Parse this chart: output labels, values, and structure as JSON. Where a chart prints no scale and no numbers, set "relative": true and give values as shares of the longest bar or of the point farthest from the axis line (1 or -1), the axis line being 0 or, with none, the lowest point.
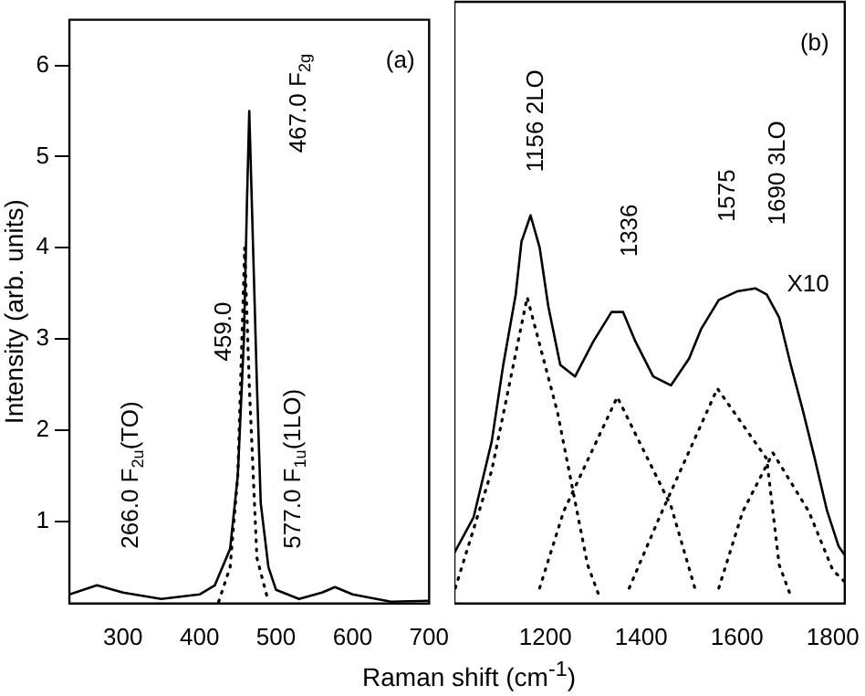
{
  "chart_data": [
    {
      "type": "line",
      "ylabel": "Intensity (arb. units)",
      "xlim": [
        230,
        700
      ],
      "xticks": [
        300,
        400,
        500,
        600,
        700
      ],
      "ylim": [
        0.1,
        6.5
      ],
      "yticks": [
        1,
        2,
        3,
        4,
        5,
        6
      ],
      "grid": false,
      "marker": "none",
      "series": [
        {
          "color": "#000000",
          "line_style": "solid",
          "x": [
            230,
            266,
            300,
            350,
            400,
            420,
            440,
            450,
            458,
            462,
            465,
            470,
            475,
            480,
            490,
            500,
            530,
            560,
            577,
            600,
            650,
            700
          ],
          "values": [
            0.2,
            0.3,
            0.22,
            0.15,
            0.2,
            0.3,
            0.7,
            1.5,
            3.0,
            4.5,
            5.5,
            4.0,
            2.5,
            1.2,
            0.5,
            0.25,
            0.15,
            0.22,
            0.28,
            0.2,
            0.12,
            0.13
          ]
        },
        {
          "color": "#000000",
          "line_style": "dotted",
          "x": [
            425,
            440,
            450,
            459,
            465,
            475,
            490
          ],
          "values": [
            0.12,
            0.5,
            1.5,
            4.0,
            2.5,
            0.6,
            0.12
          ]
        }
      ],
      "annotations": [
        "(a)",
        "266.0 F$_{2u}$(TO)",
        "459.0",
        "467.0 F$_{2g}$",
        "577.0 F$_{1u}$(1LO)"
      ]
    },
    {
      "type": "line",
      "xlabel": "Raman shift (cm$^{-1}$)",
      "relative": true,
      "xlim": [
        1010,
        1825
      ],
      "xticks": [
        1200,
        1400,
        1600,
        1800
      ],
      "tick_labels": "x",
      "grid": false,
      "marker": "none",
      "series": [
        {
          "color": "#000000",
          "line_style": "solid",
          "x": [
            1010,
            1050,
            1088,
            1112,
            1138,
            1150,
            1169,
            1188,
            1206,
            1231,
            1262,
            1300,
            1338,
            1362,
            1388,
            1425,
            1462,
            1500,
            1525,
            1562,
            1600,
            1638,
            1662,
            1688,
            1712,
            1738,
            1762,
            1788,
            1812,
            1825
          ],
          "values": [
            0.131,
            0.222,
            0.418,
            0.615,
            0.796,
            0.932,
            1.0,
            0.917,
            0.766,
            0.615,
            0.585,
            0.675,
            0.751,
            0.751,
            0.675,
            0.585,
            0.562,
            0.631,
            0.707,
            0.782,
            0.804,
            0.812,
            0.796,
            0.737,
            0.616,
            0.495,
            0.375,
            0.239,
            0.148,
            0.125
          ]
        },
        {
          "color": "#000000",
          "line_style": "dotted",
          "x": [
            1012,
            1088,
            1162,
            1225,
            1288,
            1312
          ],
          "values": [
            0.04,
            0.343,
            0.789,
            0.494,
            0.1,
            0.02
          ]
        },
        {
          "color": "#000000",
          "line_style": "dotted",
          "x": [
            1188,
            1238,
            1350,
            1462,
            1512
          ],
          "values": [
            0.04,
            0.237,
            0.532,
            0.252,
            0.04
          ]
        },
        {
          "color": "#000000",
          "line_style": "dotted",
          "x": [
            1375,
            1438,
            1559,
            1662,
            1688,
            1712
          ],
          "values": [
            0.04,
            0.222,
            0.554,
            0.373,
            0.1,
            0.02
          ]
        },
        {
          "color": "#000000",
          "line_style": "dotted",
          "x": [
            1562,
            1612,
            1675,
            1750,
            1800,
            1825
          ],
          "values": [
            0.04,
            0.237,
            0.388,
            0.237,
            0.086,
            0.056
          ]
        }
      ],
      "annotations": [
        "(b)",
        "X10",
        "1156 2LO",
        "1336",
        "1575",
        "1690 3LO"
      ]
    }
  ]
}
